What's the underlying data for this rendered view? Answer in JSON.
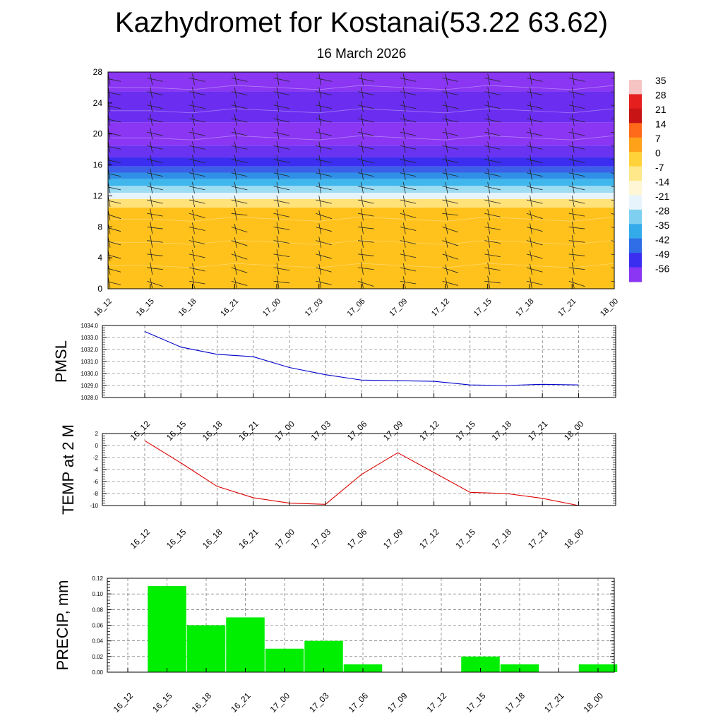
{
  "header": {
    "title": "Kazhydromet for Kostanai(53.22 63.62)",
    "date": "16 March 2026"
  },
  "chart_data": [
    {
      "id": "cross_section",
      "type": "heatmap",
      "title": "",
      "x": [
        "16_12",
        "16_15",
        "16_18",
        "16_21",
        "17_00",
        "17_03",
        "17_06",
        "17_09",
        "17_12",
        "17_15",
        "17_18",
        "17_21",
        "18_00"
      ],
      "y_ticks": [
        0,
        4,
        8,
        12,
        16,
        20,
        24,
        28
      ],
      "ylim": [
        0,
        28
      ],
      "bands": [
        {
          "y0": 0,
          "y1": 10.5,
          "color": "#ffc21c"
        },
        {
          "y0": 10.5,
          "y1": 11.6,
          "color": "#ffe27a"
        },
        {
          "y0": 11.6,
          "y1": 12.4,
          "color": "#e8f4fb"
        },
        {
          "y0": 12.4,
          "y1": 13.3,
          "color": "#9edcf2"
        },
        {
          "y0": 13.3,
          "y1": 14.2,
          "color": "#3fb6ec"
        },
        {
          "y0": 14.2,
          "y1": 15.0,
          "color": "#2f8fe6"
        },
        {
          "y0": 15.0,
          "y1": 15.8,
          "color": "#3b5fe8"
        },
        {
          "y0": 15.8,
          "y1": 17.0,
          "color": "#3c2ef0"
        },
        {
          "y0": 17.0,
          "y1": 18.5,
          "color": "#6a33f2"
        },
        {
          "y0": 18.5,
          "y1": 21.5,
          "color": "#8a36f3"
        },
        {
          "y0": 21.5,
          "y1": 25.5,
          "color": "#6b2ef0"
        },
        {
          "y0": 25.5,
          "y1": 28,
          "color": "#8a36f3"
        }
      ],
      "colorbar": {
        "labels": [
          "35",
          "28",
          "21",
          "14",
          "7",
          "0",
          "-7",
          "-14",
          "-21",
          "-28",
          "-35",
          "-42",
          "-49",
          "-56"
        ],
        "colors": [
          "#f7c4c4",
          "#e51e1e",
          "#c81414",
          "#ff6a1a",
          "#ffa21a",
          "#ffd23a",
          "#ffe88a",
          "#fff6d6",
          "#e8f4fb",
          "#7fd0f0",
          "#33aaea",
          "#2f6ee6",
          "#3b2ef0",
          "#8a36f3"
        ]
      }
    },
    {
      "id": "pmsl",
      "type": "line",
      "ylabel": "PMSL",
      "x": [
        "16_12",
        "16_15",
        "16_18",
        "16_21",
        "17_00",
        "17_03",
        "17_06",
        "17_09",
        "17_12",
        "17_15",
        "17_18",
        "17_21",
        "18_00"
      ],
      "values": [
        1033.5,
        1032.2,
        1031.6,
        1031.4,
        1030.5,
        1029.9,
        1029.45,
        1029.4,
        1029.35,
        1029.05,
        1029.0,
        1029.1,
        1029.05
      ],
      "ylim": [
        1028,
        1034
      ],
      "y_ticks": [
        "1028.0",
        "1029.0",
        "1030.0",
        "1031.0",
        "1032.0",
        "1033.0",
        "1034.0"
      ],
      "color": "#0000cc"
    },
    {
      "id": "temp2m",
      "type": "line",
      "ylabel": "TEMP at 2 M",
      "x": [
        "16_12",
        "16_15",
        "16_18",
        "16_21",
        "17_00",
        "17_03",
        "17_06",
        "17_09",
        "17_12",
        "17_15",
        "17_18",
        "17_21",
        "18_00"
      ],
      "values": [
        0.8,
        -2.9,
        -6.8,
        -8.7,
        -9.6,
        -9.8,
        -4.8,
        -1.2,
        -4.5,
        -7.8,
        -8.0,
        -8.8,
        -10.0
      ],
      "ylim": [
        -10,
        2
      ],
      "y_ticks": [
        "-10",
        "-8",
        "-6",
        "-4",
        "-2",
        "0",
        "2"
      ],
      "color": "#dd0000"
    },
    {
      "id": "precip",
      "type": "bar",
      "ylabel": "PRECIP, mm",
      "categories": [
        "16_12",
        "16_15",
        "16_18",
        "16_21",
        "17_00",
        "17_03",
        "17_06",
        "17_09",
        "17_12",
        "17_15",
        "17_18",
        "17_21",
        "18_00"
      ],
      "values": [
        0,
        0.11,
        0.06,
        0.07,
        0.03,
        0.04,
        0.01,
        0,
        0,
        0.02,
        0.01,
        0,
        0.01
      ],
      "ylim": [
        0,
        0.12
      ],
      "y_ticks": [
        "0.00",
        "0.02",
        "0.04",
        "0.06",
        "0.08",
        "0.10",
        "0.12"
      ],
      "color": "#00ee00"
    }
  ]
}
